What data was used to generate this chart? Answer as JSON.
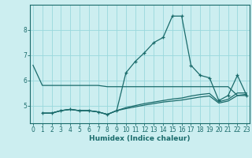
{
  "xlabel": "Humidex (Indice chaleur)",
  "bg_color": "#cceef0",
  "grid_color": "#99d8dc",
  "line_color": "#1a6b6b",
  "x": [
    0,
    1,
    2,
    3,
    4,
    5,
    6,
    7,
    8,
    9,
    10,
    11,
    12,
    13,
    14,
    15,
    16,
    17,
    18,
    19,
    20,
    21,
    22,
    23
  ],
  "line1": [
    6.6,
    5.8,
    5.8,
    5.8,
    5.8,
    5.8,
    5.8,
    5.8,
    5.75,
    5.75,
    5.75,
    5.75,
    5.75,
    5.75,
    5.75,
    5.75,
    5.75,
    5.75,
    5.75,
    5.75,
    5.75,
    5.75,
    5.4,
    5.4
  ],
  "line2_x": [
    1,
    2,
    3,
    4,
    5,
    6,
    7,
    8,
    9,
    10,
    11,
    12,
    13,
    14,
    15,
    16,
    17,
    18,
    19,
    20,
    21,
    22,
    23
  ],
  "line2_y": [
    4.7,
    4.7,
    4.8,
    4.85,
    4.8,
    4.8,
    4.75,
    4.65,
    4.8,
    6.3,
    6.75,
    7.1,
    7.5,
    7.7,
    8.55,
    8.55,
    6.6,
    6.2,
    6.1,
    5.2,
    5.4,
    6.2,
    5.4
  ],
  "line3_x": [
    1,
    2,
    3,
    4,
    5,
    6,
    7,
    8,
    9,
    10,
    11,
    12,
    13,
    14,
    15,
    16,
    17,
    18,
    19,
    20,
    21,
    22,
    23
  ],
  "line3_y": [
    4.7,
    4.7,
    4.8,
    4.85,
    4.8,
    4.8,
    4.75,
    4.65,
    4.8,
    4.88,
    4.95,
    5.02,
    5.08,
    5.14,
    5.18,
    5.22,
    5.28,
    5.34,
    5.38,
    5.1,
    5.18,
    5.4,
    5.45
  ],
  "line4_x": [
    1,
    2,
    3,
    4,
    5,
    6,
    7,
    8,
    9,
    10,
    11,
    12,
    13,
    14,
    15,
    16,
    17,
    18,
    19,
    20,
    21,
    22,
    23
  ],
  "line4_y": [
    4.7,
    4.7,
    4.8,
    4.85,
    4.8,
    4.8,
    4.75,
    4.65,
    4.8,
    4.92,
    5.0,
    5.08,
    5.14,
    5.2,
    5.26,
    5.3,
    5.38,
    5.44,
    5.48,
    5.15,
    5.25,
    5.5,
    5.5
  ],
  "ylim": [
    4.3,
    9.0
  ],
  "yticks": [
    5,
    6,
    7,
    8
  ],
  "xlim": [
    -0.3,
    23.3
  ],
  "xticks": [
    0,
    1,
    2,
    3,
    4,
    5,
    6,
    7,
    8,
    9,
    10,
    11,
    12,
    13,
    14,
    15,
    16,
    17,
    18,
    19,
    20,
    21,
    22,
    23
  ]
}
